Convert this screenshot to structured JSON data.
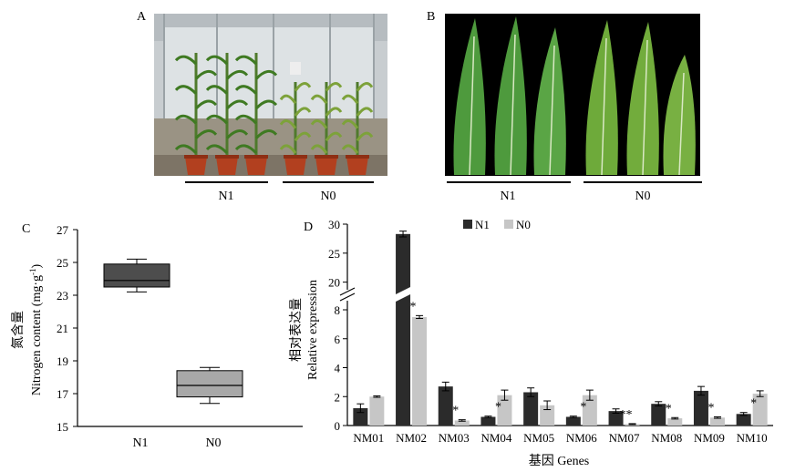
{
  "panels": {
    "A": {
      "letter": "A",
      "groups": [
        "N1",
        "N0"
      ]
    },
    "B": {
      "letter": "B",
      "groups": [
        "N1",
        "N0"
      ]
    }
  },
  "colors": {
    "n1": "#2b2b2b",
    "n0": "#c6c6c6",
    "box_n1": "#4d4d4d",
    "box_n0": "#a8a8a8",
    "photo_bg_B": "#000000"
  },
  "chart_data": [
    {
      "panel": "C",
      "type": "box",
      "ylabel_cn": "氮含量",
      "ylabel_en": "Nitrogen content (mg·g",
      "ylabel_sup": "-1",
      "ylabel_close": ")",
      "categories": [
        "N1",
        "N0"
      ],
      "ylim": [
        15,
        27
      ],
      "yticks": [
        15,
        17,
        19,
        21,
        23,
        25,
        27
      ],
      "boxes": [
        {
          "name": "N1",
          "min": 23.2,
          "q1": 23.5,
          "median": 23.9,
          "q3": 24.9,
          "max": 25.2
        },
        {
          "name": "N0",
          "min": 16.4,
          "q1": 16.8,
          "median": 17.5,
          "q3": 18.4,
          "max": 18.6
        }
      ]
    },
    {
      "panel": "D",
      "type": "bar",
      "ylabel_cn": "相对表达量",
      "ylabel_en": "Relative expression",
      "xlabel": "基因 Genes",
      "categories": [
        "NM01",
        "NM02",
        "NM03",
        "NM04",
        "NM05",
        "NM06",
        "NM07",
        "NM08",
        "NM09",
        "NM10"
      ],
      "yticks_low": [
        0,
        2,
        4,
        6,
        8
      ],
      "yticks_high": [
        20,
        25,
        30
      ],
      "axis_break": [
        8.5,
        19
      ],
      "series": [
        {
          "name": "N1",
          "values": [
            1.2,
            28.3,
            2.7,
            0.6,
            2.3,
            0.6,
            1.0,
            1.5,
            2.4,
            0.8
          ],
          "errors": [
            0.3,
            0.5,
            0.3,
            0.05,
            0.3,
            0.05,
            0.15,
            0.15,
            0.3,
            0.1
          ]
        },
        {
          "name": "N0",
          "values": [
            2.0,
            7.5,
            0.35,
            2.1,
            1.4,
            2.1,
            0.1,
            0.5,
            0.55,
            2.2
          ],
          "errors": [
            0.05,
            0.1,
            0.05,
            0.35,
            0.3,
            0.35,
            0.03,
            0.05,
            0.05,
            0.2
          ]
        }
      ],
      "significance": [
        "",
        "*",
        "*",
        "*",
        "",
        "*",
        "**",
        "*",
        "*",
        "*"
      ]
    }
  ]
}
